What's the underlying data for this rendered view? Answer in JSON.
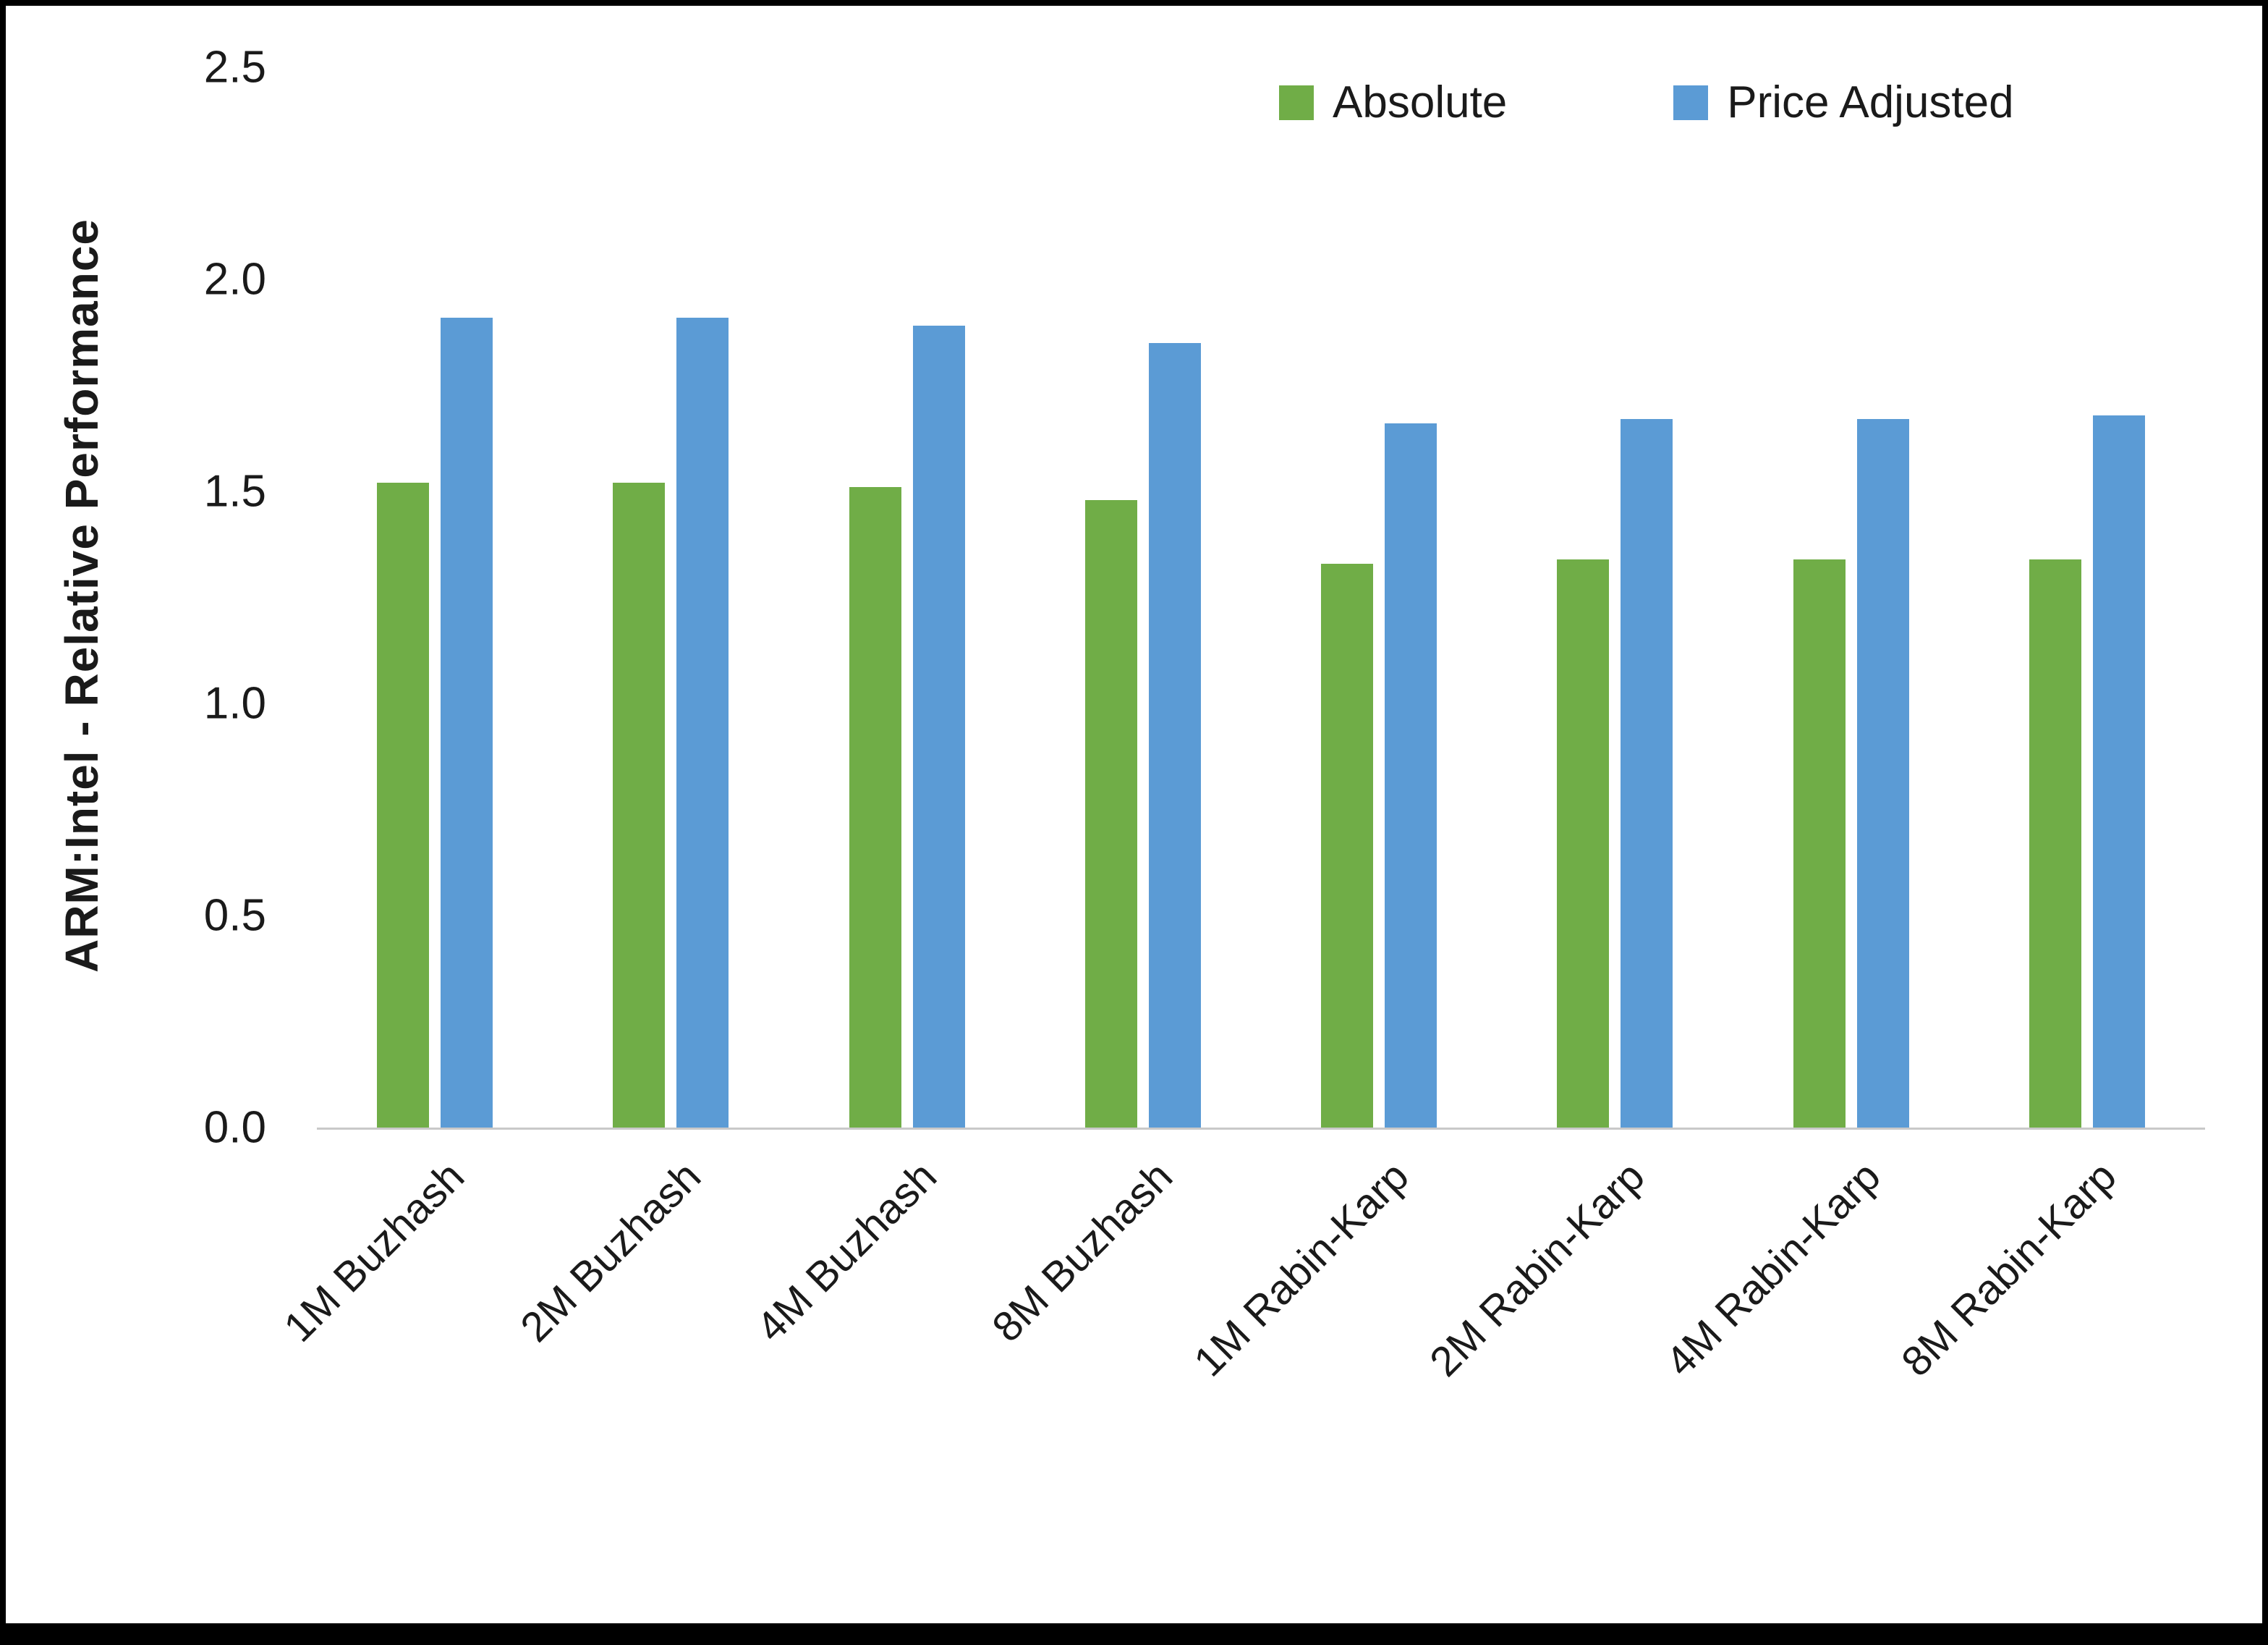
{
  "chart_data": {
    "type": "bar",
    "title": "",
    "xlabel": "",
    "ylabel": "ARM:Intel - Relative Performance",
    "ylim": [
      0,
      2.5
    ],
    "yticks": [
      0.0,
      0.5,
      1.0,
      1.5,
      2.0,
      2.5
    ],
    "ytick_labels": [
      "0.0",
      "0.5",
      "1.0",
      "1.5",
      "2.0",
      "2.5"
    ],
    "grid": false,
    "legend_position": "top-right",
    "categories": [
      "1M Buzhash",
      "2M Buzhash",
      "4M Buzhash",
      "8M Buzhash",
      "1M Rabin-Karp",
      "2M Rabin-Karp",
      "4M Rabin-Karp",
      "8M Rabin-Karp"
    ],
    "series": [
      {
        "name": "Absolute",
        "color": "#70AD47",
        "values": [
          1.52,
          1.52,
          1.51,
          1.48,
          1.33,
          1.34,
          1.34,
          1.34
        ]
      },
      {
        "name": "Price Adjusted",
        "color": "#5B9BD5",
        "values": [
          1.91,
          1.91,
          1.89,
          1.85,
          1.66,
          1.67,
          1.67,
          1.68
        ]
      }
    ]
  },
  "colors": {
    "background": "#ffffff",
    "frame": "#000000",
    "axis_line": "#c9c9c9",
    "text": "#1a1a1a",
    "absolute_green": "#70AD47",
    "price_adjusted_blue": "#5B9BD5"
  }
}
